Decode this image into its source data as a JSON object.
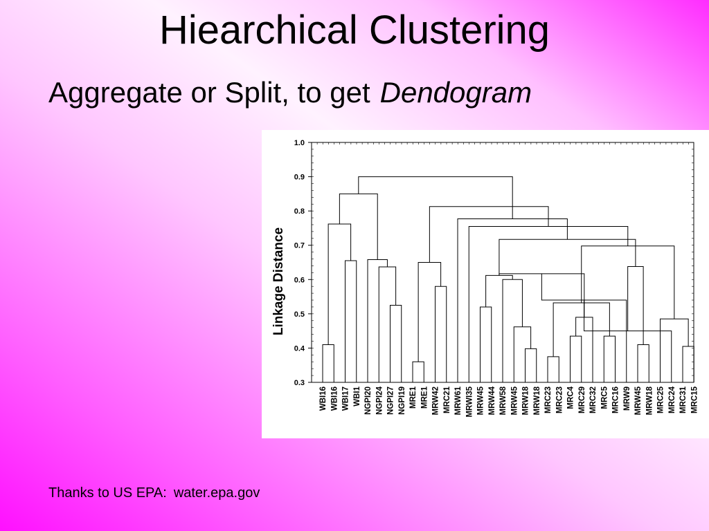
{
  "slide": {
    "title": "Hiearchical Clustering",
    "subtitle": "Aggregate or Split, to get",
    "subtitle_emphasis": "Dendogram",
    "credit_label": "Thanks to US EPA:",
    "credit_url": "water.epa.gov"
  },
  "colors": {
    "background_gradient": [
      "#ff10ff",
      "#ffc6ff",
      "#fff2ff",
      "#ff2cff"
    ],
    "chart_background": "#ffffff",
    "lines": "#000000"
  },
  "chart_data": {
    "type": "dendrogram",
    "ylabel": "Linkage Distance",
    "ylim": [
      0.3,
      1.0
    ],
    "yticks": [
      1.0,
      0.9,
      0.8,
      0.7,
      0.6,
      0.5,
      0.4,
      0.3
    ],
    "ytick_labels": [
      "1.0",
      "0.9",
      "0.8",
      "0.7",
      "0.6",
      "0.5",
      "0.4",
      "0.3"
    ],
    "grid": false,
    "leaves": [
      "WBI16",
      "WBI16",
      "WBI17",
      "WBI1",
      "NGPI20",
      "NGPI24",
      "NGPI27",
      "NGPI19",
      "MRE1",
      "MRE1",
      "MRW42",
      "MRC21",
      "MRW61",
      "MRWI35",
      "MRW45",
      "MRW44",
      "MRW58",
      "MRW45",
      "MRW18",
      "MRW18",
      "MRC23",
      "MRC23",
      "MRC4",
      "MRC29",
      "MRC32",
      "MRC5",
      "MRC16",
      "MRW9",
      "MRW45",
      "MRW18",
      "MRC25",
      "MRC24",
      "MRC31",
      "MRC15"
    ],
    "merges": [
      [
        0,
        1,
        0.41
      ],
      [
        2,
        3,
        0.655
      ],
      [
        34,
        35,
        0.762
      ],
      [
        6,
        7,
        0.525
      ],
      [
        5,
        37,
        0.637
      ],
      [
        4,
        38,
        0.658
      ],
      [
        36,
        39,
        0.85
      ],
      [
        8,
        9,
        0.36
      ],
      [
        10,
        11,
        0.58
      ],
      [
        41,
        42,
        0.65
      ],
      [
        18,
        19,
        0.398
      ],
      [
        17,
        44,
        0.462
      ],
      [
        16,
        45,
        0.6
      ],
      [
        14,
        15,
        0.52
      ],
      [
        47,
        46,
        0.612
      ],
      [
        20,
        21,
        0.375
      ],
      [
        22,
        23,
        0.435
      ],
      [
        25,
        26,
        0.435
      ],
      [
        24,
        50,
        0.49
      ],
      [
        49,
        51,
        0.532
      ],
      [
        48,
        52,
        0.617
      ],
      [
        28,
        29,
        0.41
      ],
      [
        27,
        54,
        0.54
      ],
      [
        32,
        33,
        0.405
      ],
      [
        31,
        56,
        0.45
      ],
      [
        30,
        57,
        0.485
      ],
      [
        55,
        58,
        0.638
      ],
      [
        53,
        59,
        0.698
      ],
      [
        48,
        60,
        0.717
      ],
      [
        13,
        61,
        0.755
      ],
      [
        12,
        62,
        0.777
      ],
      [
        43,
        63,
        0.813
      ],
      [
        40,
        64,
        0.9
      ]
    ]
  }
}
